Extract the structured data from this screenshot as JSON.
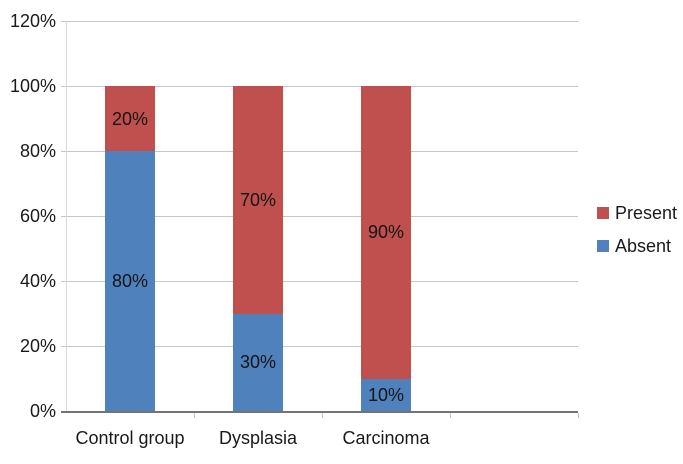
{
  "chart_data": {
    "type": "bar",
    "stacked": true,
    "title": "",
    "xlabel": "",
    "ylabel": "",
    "categories": [
      "Control group",
      "Dysplasia",
      "Carcinoma"
    ],
    "series": [
      {
        "name": "Absent",
        "color": "#4f81bd",
        "values": [
          80,
          30,
          10
        ],
        "labels": [
          "80%",
          "30%",
          "10%"
        ]
      },
      {
        "name": "Present",
        "color": "#c0504d",
        "values": [
          20,
          70,
          90
        ],
        "labels": [
          "20%",
          "70%",
          "90%"
        ]
      }
    ],
    "ylim": [
      0,
      120
    ],
    "ytick_step": 20,
    "ytick_labels": [
      "0%",
      "20%",
      "40%",
      "60%",
      "80%",
      "100%",
      "120%"
    ],
    "grid": true,
    "legend": {
      "position": "right",
      "entries": [
        "Present",
        "Absent"
      ]
    }
  },
  "colors": {
    "present": "#c0504d",
    "absent": "#4f81bd",
    "gridline": "#c6c6c6",
    "axis_line": "#737373",
    "text": "#1a1a1a",
    "background": "#ffffff"
  }
}
